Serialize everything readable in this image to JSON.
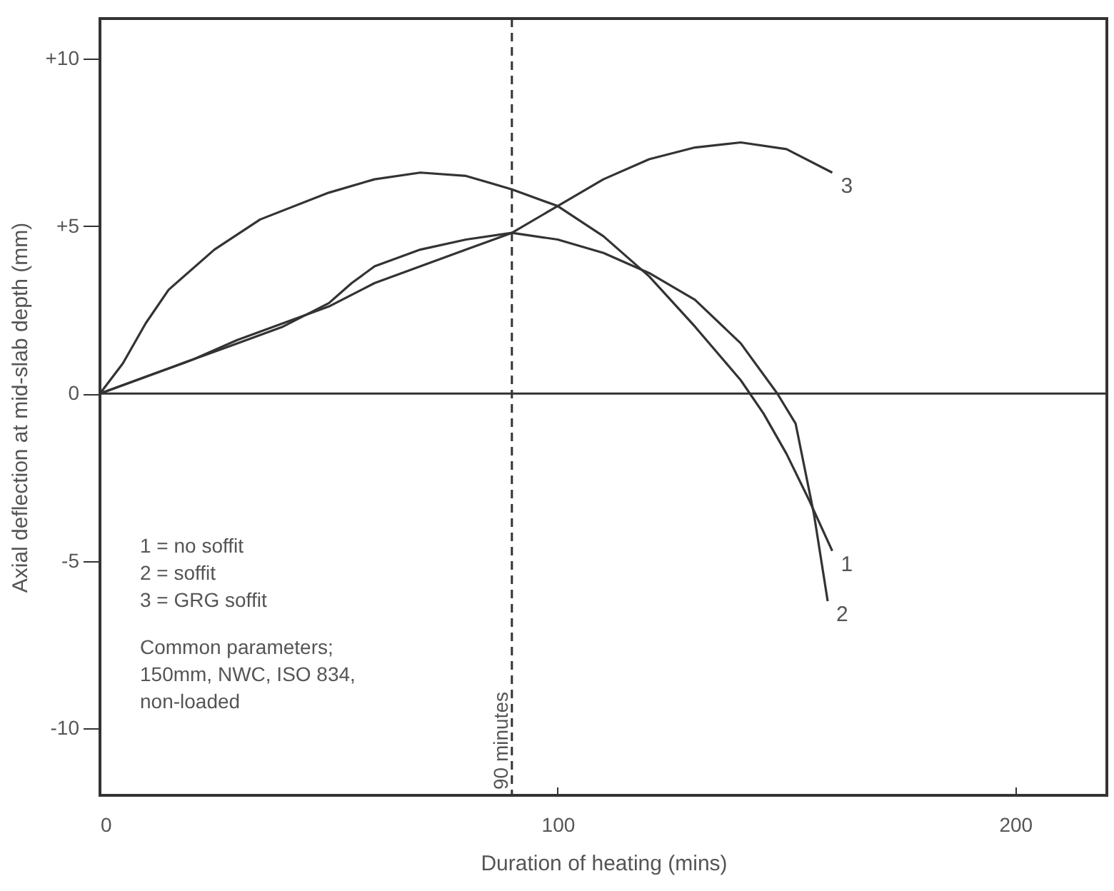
{
  "chart_data": {
    "type": "line",
    "xlabel": "Duration of heating (mins)",
    "ylabel": "Axial deflection at mid-slab depth (mm)",
    "xlim": [
      0,
      220
    ],
    "ylim": [
      -12,
      11.2
    ],
    "xticks": [
      0,
      100,
      200
    ],
    "yticks": [
      {
        "value": 10,
        "label": "+10"
      },
      {
        "value": 5,
        "label": "+5"
      },
      0,
      -5,
      -10
    ],
    "grid": false,
    "line_style": "solid",
    "series": [
      {
        "name": "1",
        "color": "#333333",
        "x": [
          0,
          5,
          10,
          15,
          25,
          35,
          50,
          60,
          70,
          80,
          90,
          100,
          110,
          120,
          130,
          140,
          145,
          150,
          155,
          160
        ],
        "values": [
          0,
          0.9,
          2.1,
          3.1,
          4.3,
          5.2,
          6.0,
          6.4,
          6.6,
          6.5,
          6.1,
          5.6,
          4.7,
          3.5,
          2.0,
          0.4,
          -0.6,
          -1.8,
          -3.2,
          -4.7
        ]
      },
      {
        "name": "2",
        "color": "#333333",
        "x": [
          0,
          10,
          20,
          30,
          40,
          50,
          55,
          60,
          70,
          80,
          90,
          100,
          110,
          120,
          130,
          140,
          148,
          152,
          156,
          159
        ],
        "values": [
          0,
          0.5,
          1.0,
          1.5,
          2.0,
          2.7,
          3.3,
          3.8,
          4.3,
          4.6,
          4.8,
          4.6,
          4.2,
          3.6,
          2.8,
          1.5,
          0,
          -0.9,
          -3.6,
          -6.2
        ]
      },
      {
        "name": "3",
        "color": "#333333",
        "x": [
          0,
          10,
          20,
          30,
          40,
          50,
          60,
          70,
          80,
          90,
          100,
          110,
          120,
          130,
          140,
          150,
          160
        ],
        "values": [
          0,
          0.5,
          1.0,
          1.6,
          2.1,
          2.6,
          3.3,
          3.8,
          4.3,
          4.8,
          5.6,
          6.4,
          7.0,
          7.35,
          7.5,
          7.3,
          6.6
        ]
      }
    ],
    "ref_lines": [
      {
        "axis": "y",
        "value": 0,
        "color": "#333333",
        "line_style": "solid"
      },
      {
        "axis": "x",
        "value": 90,
        "label": "90 minutes",
        "color": "#333333",
        "line_style": "dashed"
      }
    ],
    "annotations": [
      "1 = no soffit",
      "2 = soffit",
      "3 = GRG soffit",
      "Common parameters;",
      "150mm, NWC, ISO 834,",
      "non-loaded"
    ]
  }
}
